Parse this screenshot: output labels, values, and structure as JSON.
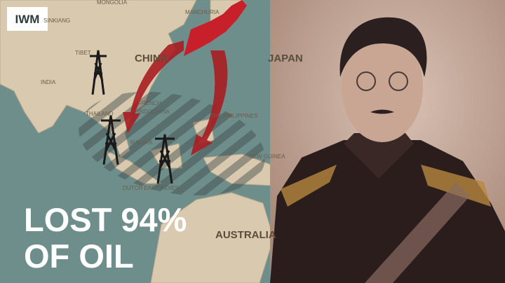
{
  "logo": "IWM",
  "map": {
    "labels": [
      "MONGOLIA",
      "SINKIANG",
      "MANCHURIA",
      "TIBET",
      "CHINA",
      "JAPAN",
      "INDIA",
      "THAILAND",
      "FRENCH",
      "INDOCHINA",
      "THE PHILIPPINES",
      "MALAYA",
      "NEW GUINEA",
      "DUTCH EAST INDIES",
      "AUSTRALIA"
    ]
  },
  "headline": [
    "LOST 94%",
    "OF OIL"
  ]
}
